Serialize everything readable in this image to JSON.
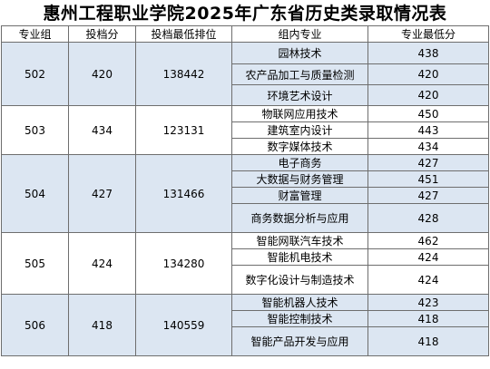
{
  "title": "惠州工程职业学院2025年广东省历史类录取情况表",
  "headers": [
    "专业组",
    "投档分",
    "投档最低排位",
    "组内专业",
    "专业最低分"
  ],
  "groups": [
    {
      "group": "502",
      "score": "420",
      "rank": "138442",
      "majors": [
        {
          "name": "园林技术",
          "min": "438"
        },
        {
          "name": "农产品加工与质量检测",
          "min": "420"
        },
        {
          "name": "环境艺术设计",
          "min": "420"
        }
      ]
    },
    {
      "group": "503",
      "score": "434",
      "rank": "123131",
      "majors": [
        {
          "name": "物联网应用技术",
          "min": "450"
        },
        {
          "name": "建筑室内设计",
          "min": "443"
        },
        {
          "name": "数字媒体技术",
          "min": "434"
        }
      ]
    },
    {
      "group": "504",
      "score": "427",
      "rank": "131466",
      "majors": [
        {
          "name": "电子商务",
          "min": "427"
        },
        {
          "name": "大数据与财务管理",
          "min": "451"
        },
        {
          "name": "财富管理",
          "min": "427"
        },
        {
          "name": "商务数据分析与应用",
          "min": "428"
        }
      ]
    },
    {
      "group": "505",
      "score": "424",
      "rank": "134280",
      "majors": [
        {
          "name": "智能网联汽车技术",
          "min": "462"
        },
        {
          "name": "智能机电技术",
          "min": "424"
        },
        {
          "name": "数字化设计与制造技术",
          "min": "424"
        }
      ]
    },
    {
      "group": "506",
      "score": "418",
      "rank": "140559",
      "majors": [
        {
          "name": "智能机器人技术",
          "min": "423"
        },
        {
          "name": "智能控制技术",
          "min": "418"
        },
        {
          "name": "智能产品开发与应用",
          "min": "418"
        }
      ]
    }
  ]
}
